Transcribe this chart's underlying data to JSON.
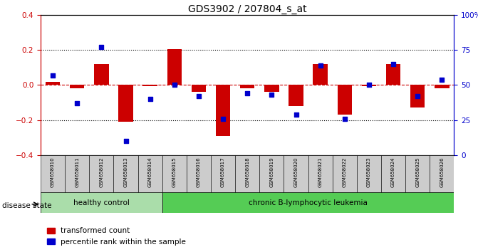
{
  "title": "GDS3902 / 207804_s_at",
  "samples": [
    "GSM658010",
    "GSM658011",
    "GSM658012",
    "GSM658013",
    "GSM658014",
    "GSM658015",
    "GSM658016",
    "GSM658017",
    "GSM658018",
    "GSM658019",
    "GSM658020",
    "GSM658021",
    "GSM658022",
    "GSM658023",
    "GSM658024",
    "GSM658025",
    "GSM658026"
  ],
  "red_values": [
    0.02,
    -0.02,
    0.12,
    -0.21,
    -0.005,
    0.205,
    -0.04,
    -0.29,
    -0.02,
    -0.04,
    -0.12,
    0.12,
    -0.17,
    -0.005,
    0.12,
    -0.13,
    -0.02
  ],
  "blue_percentiles": [
    57,
    37,
    77,
    10,
    40,
    50,
    42,
    26,
    44,
    43,
    29,
    64,
    26,
    50,
    65,
    42,
    54
  ],
  "red_color": "#cc0000",
  "blue_color": "#0000cc",
  "dashed_line_color": "#cc0000",
  "dotted_line_color": "#000000",
  "ylim_left": [
    -0.4,
    0.4
  ],
  "ylim_right": [
    0,
    100
  ],
  "yticks_left": [
    -0.4,
    -0.2,
    0.0,
    0.2,
    0.4
  ],
  "yticks_right": [
    0,
    25,
    50,
    75,
    100
  ],
  "healthy_count": 5,
  "healthy_label": "healthy control",
  "leukemia_label": "chronic B-lymphocytic leukemia",
  "disease_state_label": "disease state",
  "legend_red": "transformed count",
  "legend_blue": "percentile rank within the sample",
  "bg_color": "#ffffff",
  "plot_bg_color": "#ffffff",
  "healthy_bg": "#aaddaa",
  "leukemia_bg": "#55cc55",
  "xlabel_bg": "#cccccc",
  "bar_width": 0.6
}
